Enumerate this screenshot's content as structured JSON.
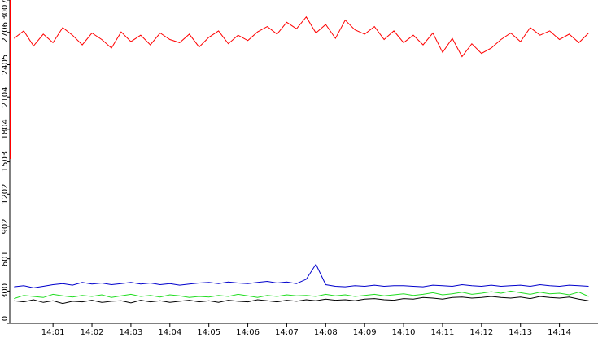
{
  "chart_data": {
    "type": "line",
    "x": [
      0,
      0.25,
      0.5,
      0.75,
      1,
      1.25,
      1.5,
      1.75,
      2,
      2.25,
      2.5,
      2.75,
      3,
      3.25,
      3.5,
      3.75,
      4,
      4.25,
      4.5,
      4.75,
      5,
      5.25,
      5.5,
      5.75,
      6,
      6.25,
      6.5,
      6.75,
      7,
      7.25,
      7.5,
      7.75,
      8,
      8.25,
      8.5,
      8.75,
      9,
      9.25,
      9.5,
      9.75,
      10,
      10.25,
      10.5,
      10.75,
      11,
      11.25,
      11.5,
      11.75,
      12,
      12.25,
      12.5,
      12.75,
      13,
      13.25,
      13.5,
      13.75,
      14,
      14.25,
      14.5,
      14.75
    ],
    "xlim": [
      -0.11,
      14.99
    ],
    "xticks": [
      {
        "value": 1,
        "label": "14:01"
      },
      {
        "value": 2,
        "label": "14:02"
      },
      {
        "value": 3,
        "label": "14:03"
      },
      {
        "value": 4,
        "label": "14:04"
      },
      {
        "value": 5,
        "label": "14:05"
      },
      {
        "value": 6,
        "label": "14:06"
      },
      {
        "value": 7,
        "label": "14:07"
      },
      {
        "value": 8,
        "label": "14:08"
      },
      {
        "value": 9,
        "label": "14:09"
      },
      {
        "value": 10,
        "label": "14:10"
      },
      {
        "value": 11,
        "label": "14:11"
      },
      {
        "value": 12,
        "label": "14:12"
      },
      {
        "value": 13,
        "label": "14:13"
      },
      {
        "value": 14,
        "label": "14:14"
      }
    ],
    "ylim": [
      0,
      3007
    ],
    "yticks": [
      0,
      300,
      601,
      902,
      1202,
      1503,
      1804,
      2104,
      2405,
      2706,
      3007
    ],
    "series": [
      {
        "color": "#ff0000",
        "values": [
          2650,
          2720,
          2580,
          2690,
          2610,
          2750,
          2680,
          2590,
          2700,
          2640,
          2560,
          2710,
          2620,
          2680,
          2590,
          2700,
          2640,
          2610,
          2690,
          2570,
          2660,
          2720,
          2600,
          2680,
          2630,
          2710,
          2760,
          2690,
          2800,
          2740,
          2850,
          2700,
          2780,
          2650,
          2820,
          2730,
          2690,
          2760,
          2640,
          2720,
          2610,
          2680,
          2590,
          2700,
          2520,
          2650,
          2480,
          2600,
          2510,
          2560,
          2640,
          2700,
          2620,
          2750,
          2680,
          2720,
          2640,
          2690,
          2610,
          2700
        ]
      },
      {
        "color": "#0000cc",
        "values": [
          340,
          350,
          330,
          345,
          360,
          370,
          355,
          380,
          365,
          375,
          360,
          370,
          380,
          365,
          375,
          360,
          370,
          355,
          365,
          375,
          380,
          370,
          385,
          375,
          370,
          380,
          390,
          375,
          385,
          370,
          410,
          550,
          360,
          345,
          340,
          350,
          345,
          355,
          345,
          350,
          350,
          345,
          340,
          355,
          350,
          345,
          360,
          350,
          345,
          355,
          345,
          350,
          355,
          345,
          360,
          350,
          345,
          355,
          350,
          345
        ]
      },
      {
        "color": "#22dd22",
        "values": [
          230,
          260,
          250,
          240,
          270,
          255,
          245,
          260,
          250,
          265,
          240,
          255,
          270,
          250,
          260,
          245,
          265,
          255,
          240,
          250,
          245,
          260,
          250,
          270,
          255,
          240,
          260,
          250,
          265,
          255,
          260,
          250,
          270,
          255,
          265,
          250,
          260,
          270,
          255,
          265,
          275,
          260,
          270,
          285,
          265,
          275,
          290,
          270,
          280,
          295,
          280,
          300,
          285,
          270,
          290,
          275,
          280,
          265,
          290,
          250
        ]
      },
      {
        "color": "#000000",
        "values": [
          210,
          200,
          220,
          195,
          210,
          185,
          205,
          200,
          215,
          195,
          205,
          210,
          190,
          215,
          200,
          210,
          195,
          205,
          215,
          200,
          210,
          195,
          215,
          205,
          200,
          220,
          210,
          200,
          215,
          205,
          220,
          210,
          225,
          215,
          220,
          210,
          225,
          230,
          220,
          215,
          230,
          225,
          240,
          235,
          225,
          240,
          245,
          235,
          240,
          250,
          240,
          235,
          245,
          230,
          250,
          240,
          235,
          245,
          225,
          210
        ]
      }
    ]
  }
}
